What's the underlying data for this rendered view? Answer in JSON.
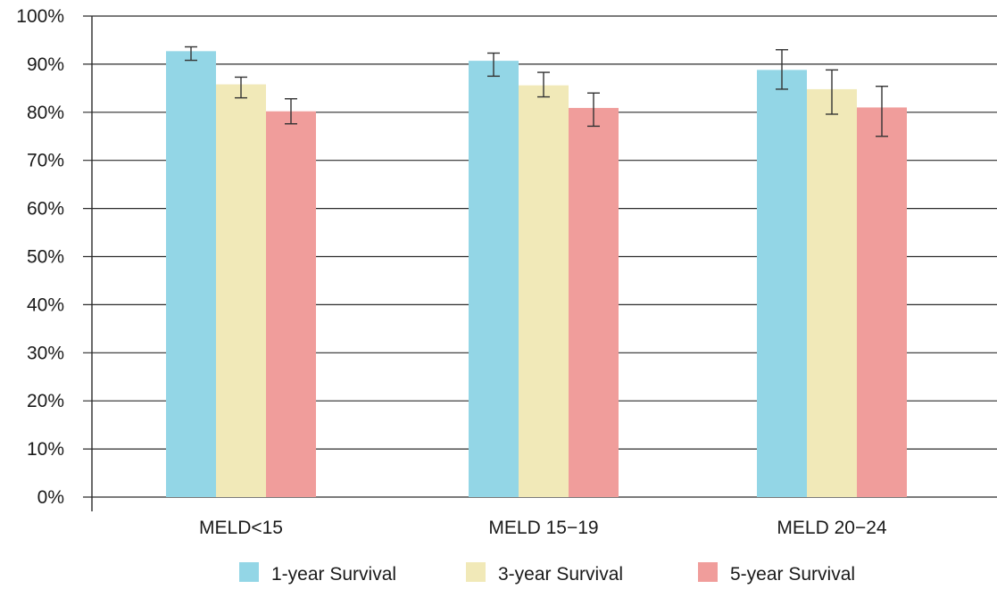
{
  "chart_data": {
    "type": "bar",
    "title": "",
    "xlabel": "",
    "ylabel": "",
    "categories": [
      "MELD<15",
      "MELD 15−19",
      "MELD  20−24"
    ],
    "series": [
      {
        "name": "1-year Survival",
        "color": "#93d6e6",
        "values": [
          92.7,
          90.7,
          88.8
        ],
        "error_low": [
          90.8,
          87.5,
          84.8
        ],
        "error_high": [
          93.6,
          92.3,
          93.0
        ]
      },
      {
        "name": "3-year Survival",
        "color": "#f1e9b8",
        "values": [
          85.8,
          85.6,
          84.8
        ],
        "error_low": [
          83.0,
          83.2,
          79.6
        ],
        "error_high": [
          87.3,
          88.3,
          88.8
        ]
      },
      {
        "name": "5-year Survival",
        "color": "#f09d9b",
        "values": [
          80.2,
          80.9,
          81.0
        ],
        "error_low": [
          77.6,
          77.1,
          75.0
        ],
        "error_high": [
          82.8,
          84.0,
          85.4
        ]
      }
    ],
    "ylim": [
      0,
      100
    ],
    "yticks": [
      0,
      10,
      20,
      30,
      40,
      50,
      60,
      70,
      80,
      90,
      100
    ],
    "ytick_labels": [
      "0%",
      "10%",
      "20%",
      "30%",
      "40%",
      "50%",
      "60%",
      "70%",
      "80%",
      "90%",
      "100%"
    ],
    "grid": true,
    "legend_position": "bottom"
  }
}
